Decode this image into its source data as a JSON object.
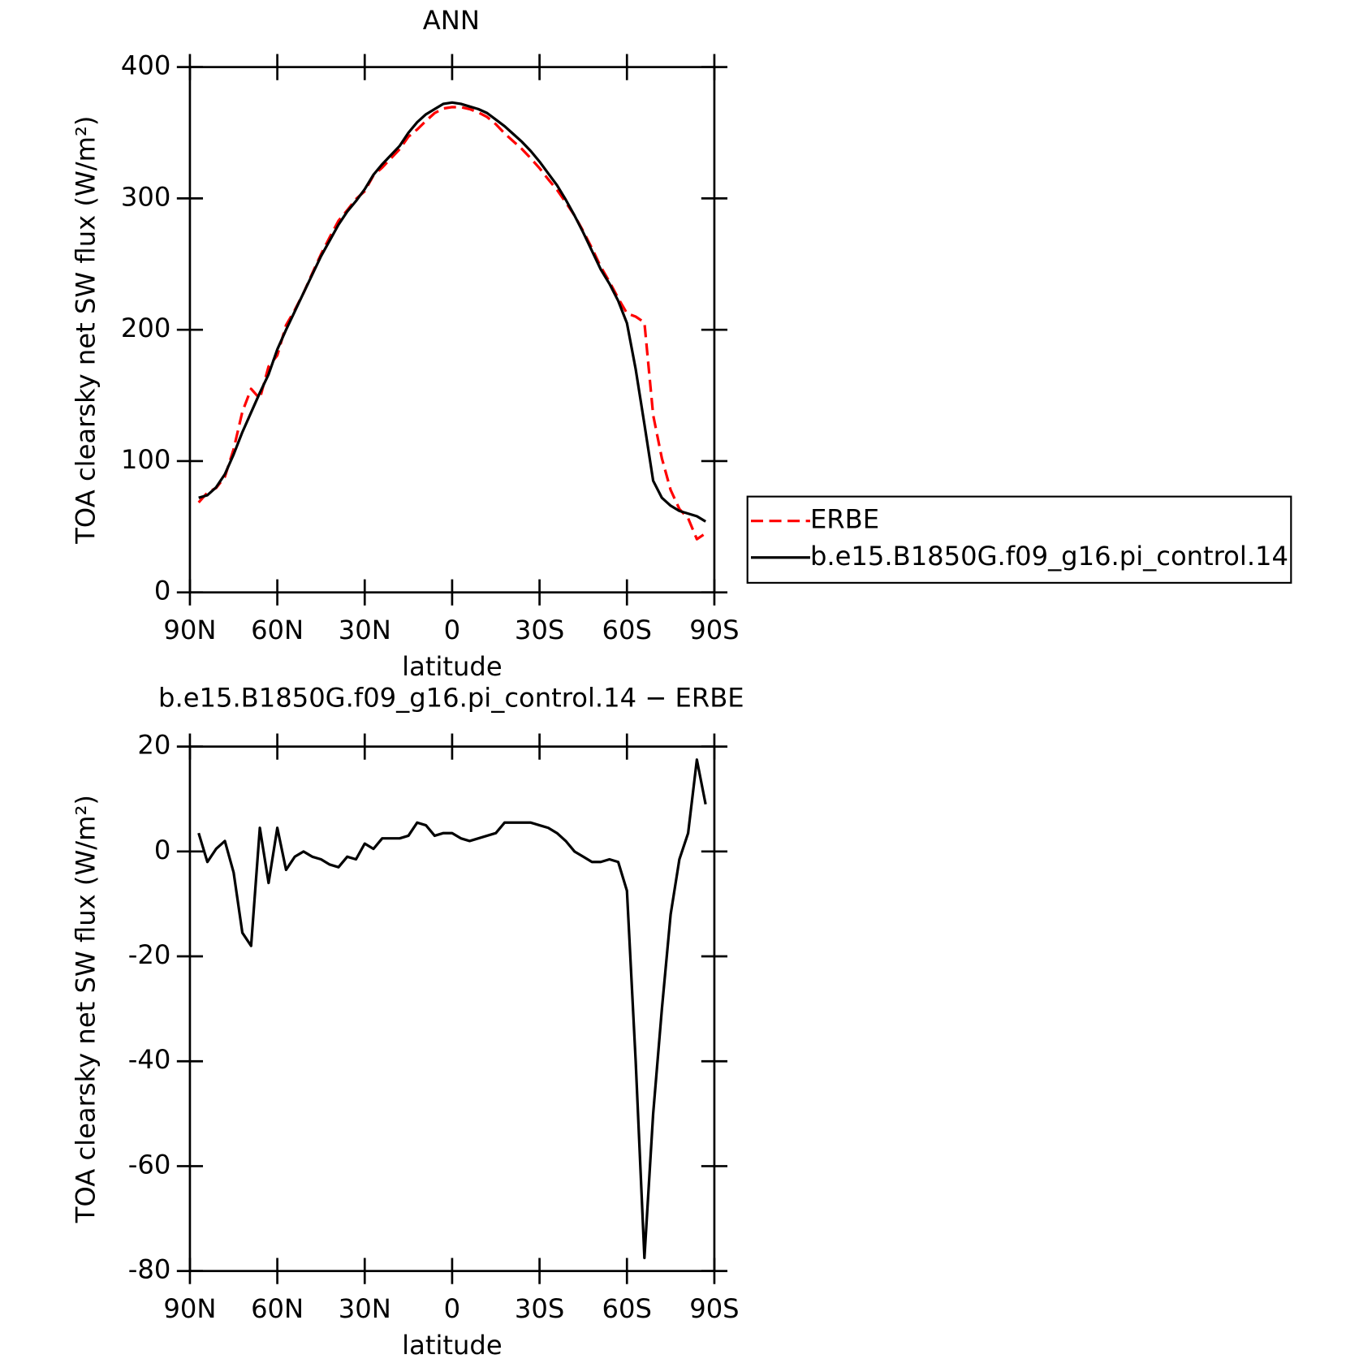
{
  "chart_data": [
    {
      "type": "line",
      "title": "ANN",
      "xlabel": "latitude",
      "ylabel": "TOA clearsky net SW flux (W/m²)",
      "x": [
        87,
        84,
        81,
        78,
        75,
        72,
        69,
        66,
        63,
        60,
        57,
        54,
        51,
        48,
        45,
        42,
        39,
        36,
        33,
        30,
        27,
        24,
        21,
        18,
        15,
        12,
        9,
        6,
        3,
        0,
        -3,
        -6,
        -9,
        -12,
        -15,
        -18,
        -21,
        -24,
        -27,
        -30,
        -33,
        -36,
        -39,
        -42,
        -45,
        -48,
        -51,
        -54,
        -57,
        -60,
        -63,
        -66,
        -69,
        -72,
        -75,
        -78,
        -81,
        -84,
        -87
      ],
      "series": [
        {
          "name": "ERBE",
          "color": "#ff0000",
          "dash": true,
          "values": [
            68.5,
            76,
            79.5,
            88,
            109,
            137.5,
            155,
            147.5,
            172,
            180.5,
            203.5,
            215,
            228,
            243,
            257.5,
            270.5,
            283,
            291,
            299.5,
            305.5,
            317.5,
            323.5,
            330.5,
            337.5,
            347,
            352.5,
            359,
            365,
            368.5,
            369.5,
            369.5,
            368,
            365.5,
            362,
            356.5,
            349.5,
            343.5,
            337.5,
            330.5,
            323,
            314.5,
            306.5,
            297,
            287,
            275,
            262,
            248,
            236.5,
            224,
            212.5,
            210,
            205.5,
            135,
            102,
            78,
            63.5,
            56.5,
            40.5,
            45
          ]
        },
        {
          "name": "b.e15.B1850G.f09_g16.pi_control.14",
          "color": "#000000",
          "dash": false,
          "values": [
            72,
            74,
            80,
            90,
            105,
            122,
            137,
            152,
            166,
            185,
            200,
            214,
            228,
            242,
            256,
            268,
            280,
            290,
            298,
            307,
            318,
            326,
            333,
            340,
            350,
            358,
            364,
            368,
            372,
            373,
            372,
            370,
            368,
            365,
            360,
            355,
            349,
            343,
            336,
            328,
            319,
            310,
            299,
            287,
            274,
            260,
            246,
            235,
            222,
            205,
            170,
            128,
            85,
            72,
            66,
            62,
            60,
            58,
            54
          ]
        }
      ],
      "xlim": [
        90,
        -90
      ],
      "ylim": [
        0,
        400
      ],
      "xticks": [
        {
          "value": 90,
          "label": "90N"
        },
        {
          "value": 60,
          "label": "60N"
        },
        {
          "value": 30,
          "label": "30N"
        },
        0,
        {
          "value": -30,
          "label": "30S"
        },
        {
          "value": -60,
          "label": "60S"
        },
        {
          "value": -90,
          "label": "90S"
        }
      ],
      "yticks": [
        0,
        100,
        200,
        300,
        400
      ],
      "legend": "right"
    },
    {
      "type": "line",
      "title": "b.e15.B1850G.f09_g16.pi_control.14 − ERBE",
      "xlabel": "latitude",
      "ylabel": "TOA clearsky net SW flux (W/m²)",
      "x": [
        87,
        84,
        81,
        78,
        75,
        72,
        69,
        66,
        63,
        60,
        57,
        54,
        51,
        48,
        45,
        42,
        39,
        36,
        33,
        30,
        27,
        24,
        21,
        18,
        15,
        12,
        9,
        6,
        3,
        0,
        -3,
        -6,
        -9,
        -12,
        -15,
        -18,
        -21,
        -24,
        -27,
        -30,
        -33,
        -36,
        -39,
        -42,
        -45,
        -48,
        -51,
        -54,
        -57,
        -60,
        -63,
        -66,
        -69,
        -72,
        -75,
        -78,
        -81,
        -84,
        -87
      ],
      "series": [
        {
          "color": "#000000",
          "dash": false,
          "values": [
            3.5,
            -2,
            0.5,
            2,
            -4,
            -15.5,
            -18,
            4.5,
            -6,
            4.5,
            -3.5,
            -1,
            0,
            -1,
            -1.5,
            -2.5,
            -3,
            -1,
            -1.5,
            1.5,
            0.5,
            2.5,
            2.5,
            2.5,
            3,
            5.5,
            5,
            3,
            3.5,
            3.5,
            2.5,
            2,
            2.5,
            3,
            3.5,
            5.5,
            5.5,
            5.5,
            5.5,
            5,
            4.5,
            3.5,
            2,
            0,
            -1,
            -2,
            -2,
            -1.5,
            -2,
            -7.5,
            -40,
            -77.5,
            -50,
            -30,
            -12,
            -1.5,
            3.5,
            17.5,
            9
          ]
        }
      ],
      "xlim": [
        90,
        -90
      ],
      "ylim": [
        -80,
        20
      ],
      "xticks": [
        {
          "value": 90,
          "label": "90N"
        },
        {
          "value": 60,
          "label": "60N"
        },
        {
          "value": 30,
          "label": "30N"
        },
        0,
        {
          "value": -30,
          "label": "30S"
        },
        {
          "value": -60,
          "label": "60S"
        },
        {
          "value": -90,
          "label": "90S"
        }
      ],
      "yticks": [
        -80,
        -60,
        -40,
        -20,
        0,
        20
      ]
    }
  ]
}
